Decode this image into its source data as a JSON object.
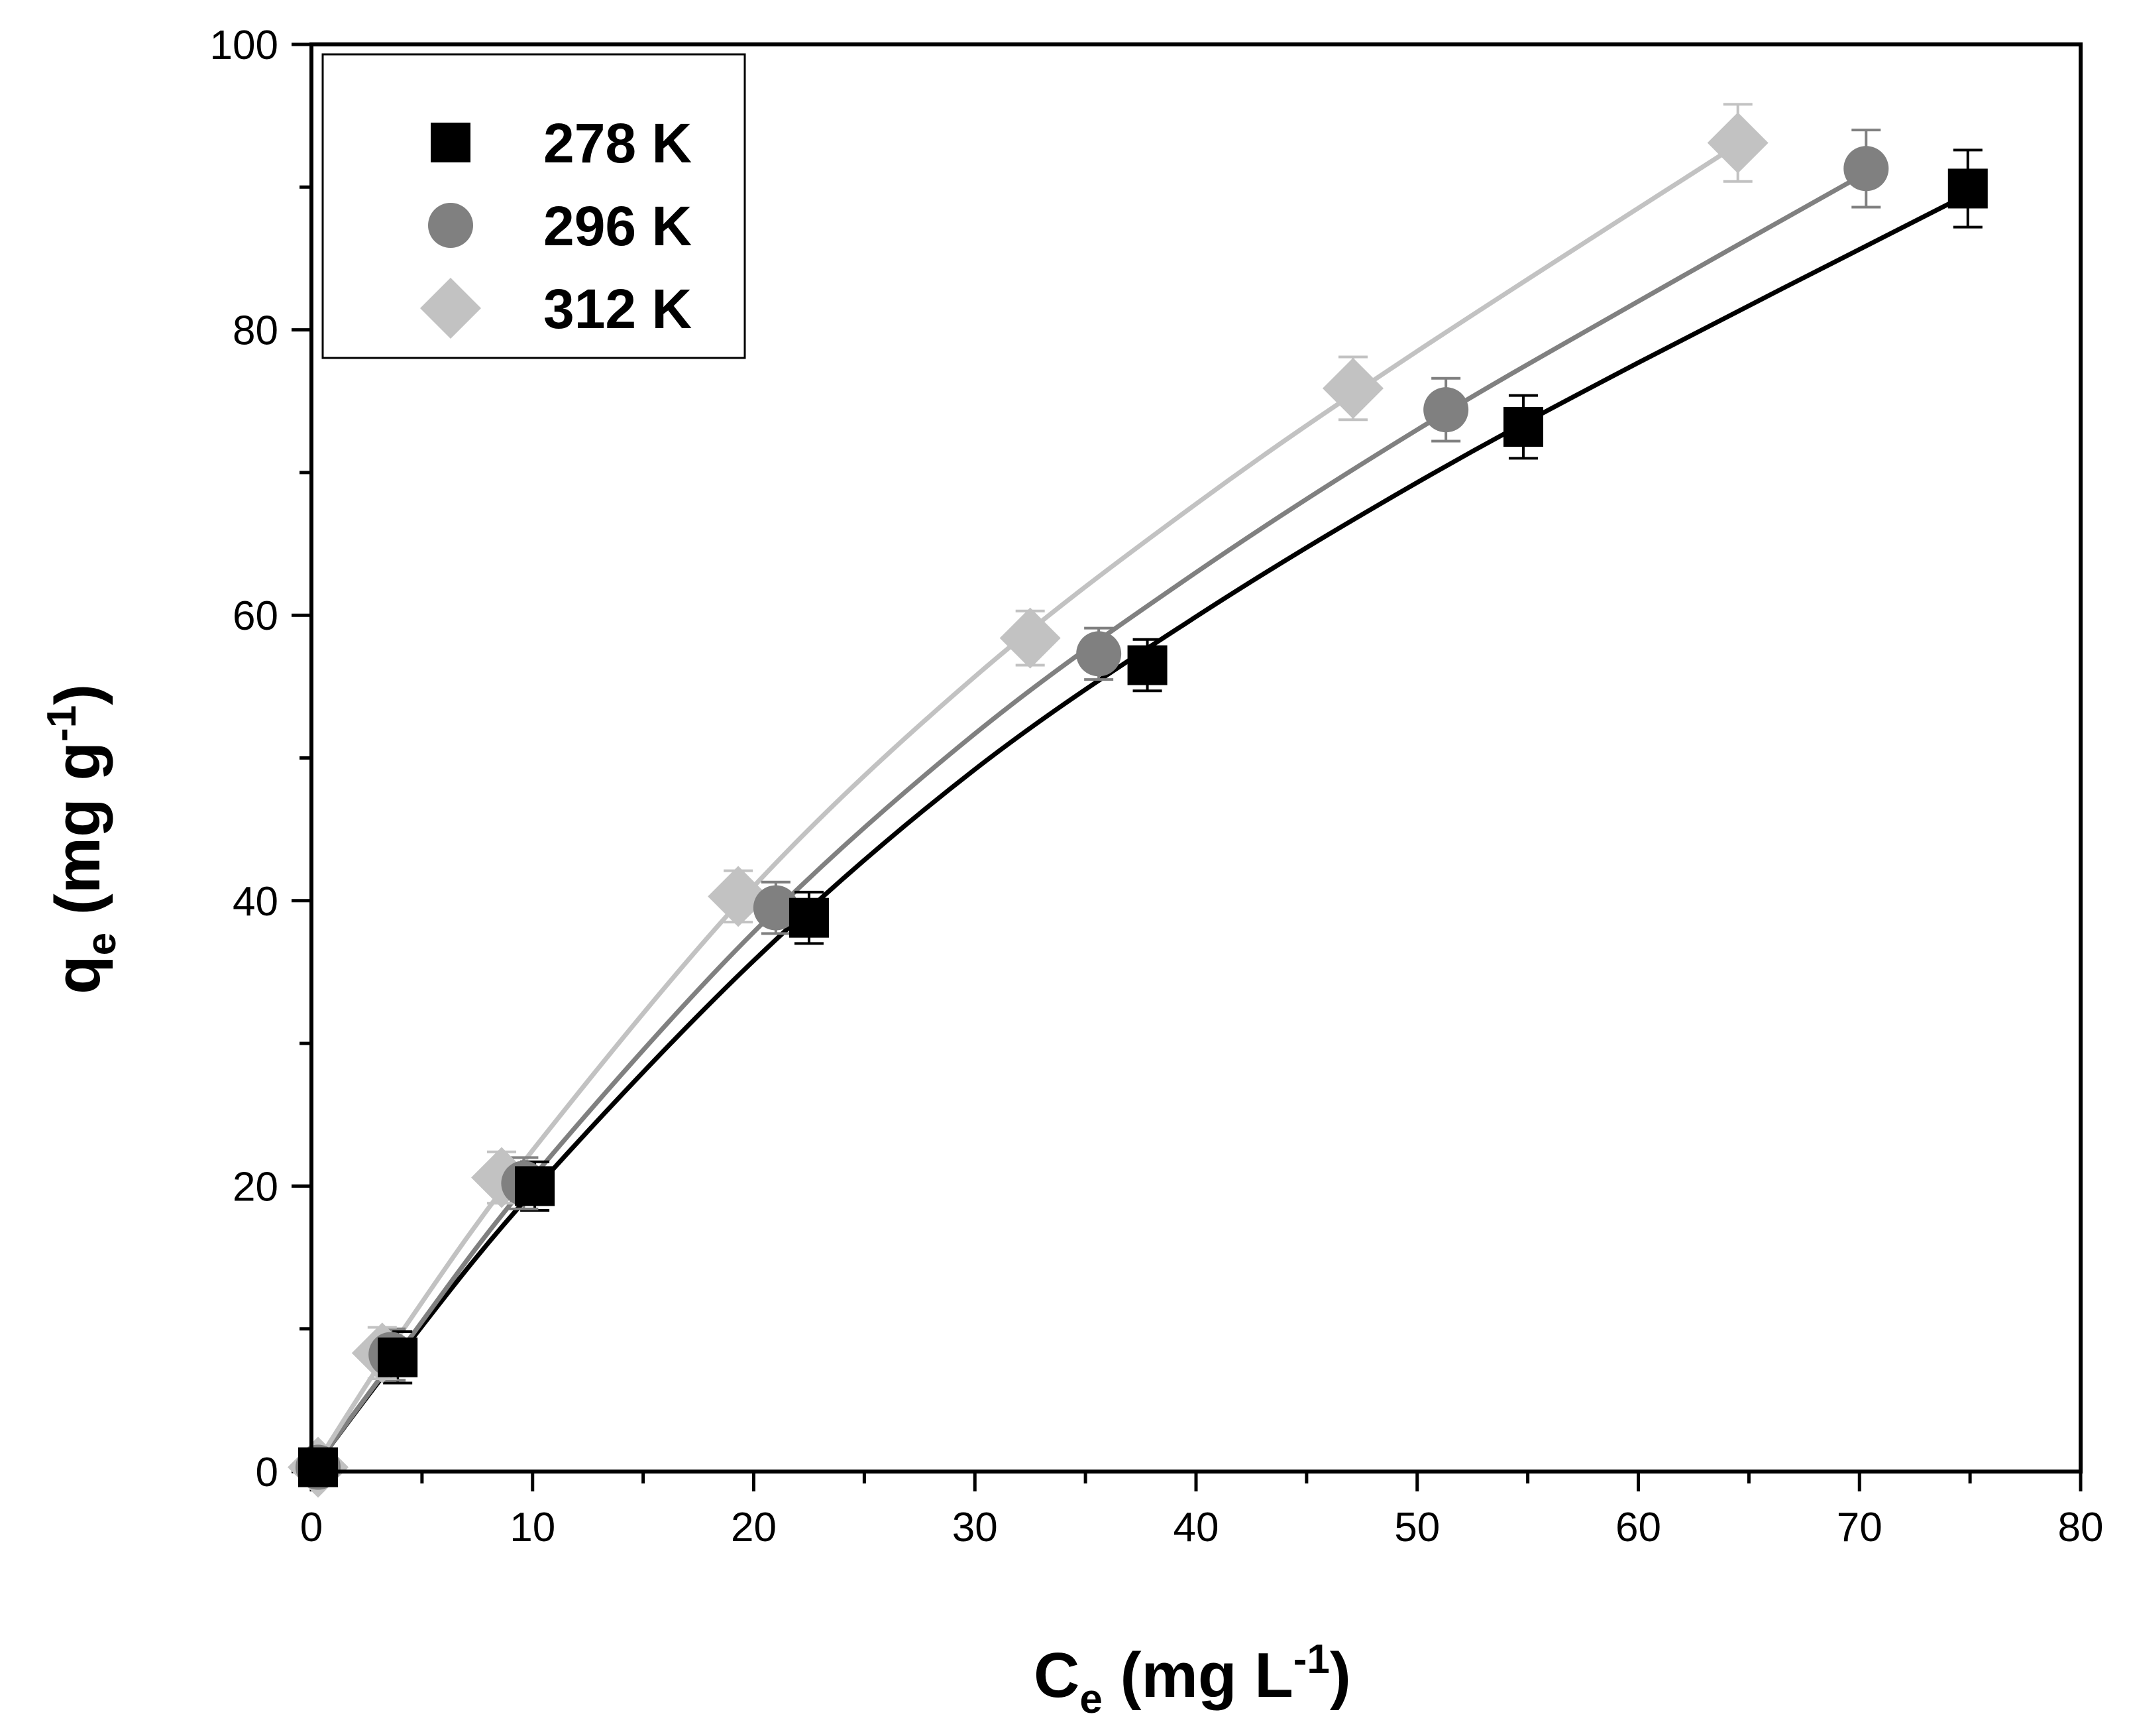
{
  "chart_data": {
    "type": "scatter",
    "title": "",
    "xlabel": {
      "main": "C",
      "sub": "e",
      "units_open": " (mg L",
      "sup": "-1",
      "units_close": ")"
    },
    "ylabel": {
      "main": "q",
      "sub": "e",
      "units_open": " (mg g",
      "sup": "-1",
      "units_close": ")"
    },
    "xlim": [
      0,
      80
    ],
    "ylim": [
      0,
      100
    ],
    "x_ticks": [
      0,
      10,
      20,
      30,
      40,
      50,
      60,
      70,
      80
    ],
    "y_ticks": [
      0,
      20,
      40,
      60,
      80,
      100
    ],
    "x_tick_labels": [
      "0",
      "10",
      "20",
      "30",
      "40",
      "50",
      "60",
      "70",
      "80"
    ],
    "y_tick_labels": [
      "0",
      "20",
      "40",
      "60",
      "80",
      "100"
    ],
    "legend_position": "top-left",
    "series": [
      {
        "name": "278 K",
        "marker": "square",
        "color": "#000000",
        "points": [
          {
            "x": 0.3,
            "y": 0.3,
            "err": 0.5
          },
          {
            "x": 3.9,
            "y": 8.0,
            "err": 1.8
          },
          {
            "x": 10.1,
            "y": 20.0,
            "err": 1.7
          },
          {
            "x": 22.5,
            "y": 38.8,
            "err": 1.8
          },
          {
            "x": 37.8,
            "y": 56.5,
            "err": 1.8
          },
          {
            "x": 54.8,
            "y": 73.2,
            "err": 2.2
          },
          {
            "x": 74.9,
            "y": 89.9,
            "err": 2.7
          }
        ],
        "fit": [
          [
            0,
            0
          ],
          [
            4,
            8.2
          ],
          [
            10,
            19.6
          ],
          [
            20,
            35.8
          ],
          [
            30,
            49.2
          ],
          [
            40,
            59.9
          ],
          [
            50,
            69.3
          ],
          [
            60,
            77.7
          ],
          [
            74.9,
            89.5
          ]
        ]
      },
      {
        "name": "296 K",
        "marker": "circle",
        "color": "#808080",
        "points": [
          {
            "x": 0.3,
            "y": 0.3,
            "err": 0.5
          },
          {
            "x": 3.6,
            "y": 8.2,
            "err": 1.8
          },
          {
            "x": 9.6,
            "y": 20.2,
            "err": 1.8
          },
          {
            "x": 21.0,
            "y": 39.5,
            "err": 1.8
          },
          {
            "x": 35.6,
            "y": 57.3,
            "err": 1.8
          },
          {
            "x": 51.3,
            "y": 74.4,
            "err": 2.2
          },
          {
            "x": 70.3,
            "y": 91.3,
            "err": 2.7
          }
        ],
        "fit": [
          [
            0,
            0
          ],
          [
            4,
            8.4
          ],
          [
            10,
            20.6
          ],
          [
            20,
            37.8
          ],
          [
            30,
            51.7
          ],
          [
            40,
            63.0
          ],
          [
            50,
            73.0
          ],
          [
            60,
            82.0
          ],
          [
            70.3,
            91.0
          ]
        ]
      },
      {
        "name": "312 K",
        "marker": "diamond",
        "color": "#c2c2c2",
        "points": [
          {
            "x": 0.3,
            "y": 0.3,
            "err": 0.5
          },
          {
            "x": 3.2,
            "y": 8.3,
            "err": 1.8
          },
          {
            "x": 8.6,
            "y": 20.6,
            "err": 1.8
          },
          {
            "x": 19.3,
            "y": 40.3,
            "err": 1.8
          },
          {
            "x": 32.5,
            "y": 58.4,
            "err": 1.9
          },
          {
            "x": 47.1,
            "y": 75.9,
            "err": 2.2
          },
          {
            "x": 64.5,
            "y": 93.1,
            "err": 2.7
          }
        ],
        "fit": [
          [
            0,
            0
          ],
          [
            4,
            9.6
          ],
          [
            10,
            22.5
          ],
          [
            20,
            41.0
          ],
          [
            30,
            55.7
          ],
          [
            40,
            67.8
          ],
          [
            50,
            78.5
          ],
          [
            64.5,
            93.0
          ]
        ]
      }
    ]
  }
}
